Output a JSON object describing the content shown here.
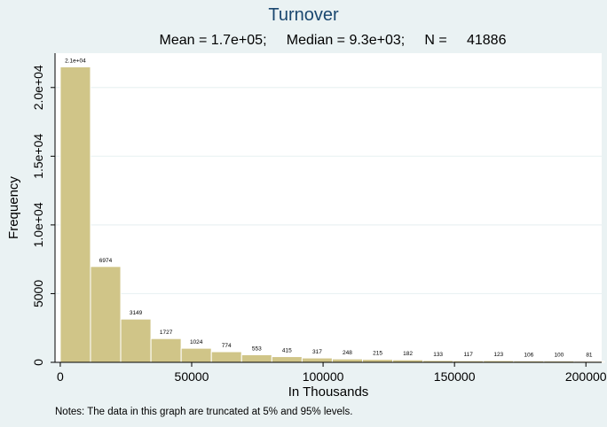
{
  "chart_data": {
    "type": "bar",
    "title": "Turnover",
    "subtitle": "Mean = 1.7e+05;     Median = 9.3e+03;     N =     41886",
    "xlabel": "In Thousands",
    "ylabel": "Frequency",
    "note": "Notes: The data in this graph are truncated at 5% and 95% levels.",
    "bin_width": 11500,
    "bins": [
      {
        "start": 0,
        "value": 21500,
        "label": "2.1e+04"
      },
      {
        "start": 11500,
        "value": 6974,
        "label": "6974"
      },
      {
        "start": 23000,
        "value": 3149,
        "label": "3149"
      },
      {
        "start": 34500,
        "value": 1727,
        "label": "1727"
      },
      {
        "start": 46000,
        "value": 1024,
        "label": "1024"
      },
      {
        "start": 57500,
        "value": 774,
        "label": "774"
      },
      {
        "start": 69000,
        "value": 553,
        "label": "553"
      },
      {
        "start": 80500,
        "value": 415,
        "label": "415"
      },
      {
        "start": 92000,
        "value": 317,
        "label": "317"
      },
      {
        "start": 103500,
        "value": 248,
        "label": "248"
      },
      {
        "start": 115000,
        "value": 215,
        "label": "215"
      },
      {
        "start": 126500,
        "value": 182,
        "label": "182"
      },
      {
        "start": 138000,
        "value": 133,
        "label": "133"
      },
      {
        "start": 149500,
        "value": 117,
        "label": "117"
      },
      {
        "start": 161000,
        "value": 123,
        "label": "123"
      },
      {
        "start": 172500,
        "value": 106,
        "label": "106"
      },
      {
        "start": 184000,
        "value": 100,
        "label": "100"
      },
      {
        "start": 195500,
        "value": 81,
        "label": "81"
      }
    ],
    "xlim": [
      -2000,
      206000
    ],
    "ylim": [
      0,
      22500
    ],
    "xticks": [
      {
        "value": 0,
        "label": "0"
      },
      {
        "value": 50000,
        "label": "50000"
      },
      {
        "value": 100000,
        "label": "100000"
      },
      {
        "value": 150000,
        "label": "150000"
      },
      {
        "value": 200000,
        "label": "200000"
      }
    ],
    "yticks": [
      {
        "value": 0,
        "label": "0"
      },
      {
        "value": 5000,
        "label": "5000"
      },
      {
        "value": 10000,
        "label": "1.0e+04"
      },
      {
        "value": 15000,
        "label": "1.5e+04"
      },
      {
        "value": 20000,
        "label": "2.0e+04"
      }
    ],
    "grid": true,
    "colors": {
      "bar_fill": "#d0c588",
      "bar_stroke": "#ffffff",
      "background": "#eaf2f3",
      "plot_background": "#ffffff",
      "grid": "#eaf2f3",
      "title": "#1a476f"
    }
  }
}
